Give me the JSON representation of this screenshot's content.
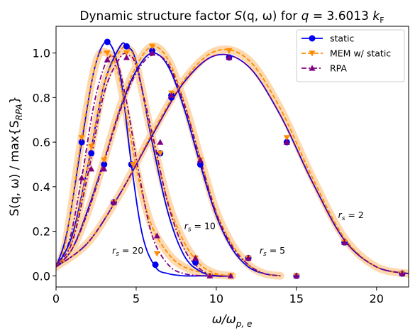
{
  "chart_data": {
    "type": "line",
    "title_parts": {
      "prefix": "Dynamic structure factor ",
      "S": "S",
      "args": "(q, ω)",
      "mid": " for ",
      "q": "q",
      "eq": " = 3.6013 ",
      "k": "k",
      "sub": "F"
    },
    "xlabel_parts": {
      "num": "ω/ω",
      "sub": "p, e"
    },
    "ylabel_parts": {
      "lhs": "S(q, ω) / max{S",
      "sub": "RPA",
      "rhs": "}"
    },
    "xlim": [
      0,
      22
    ],
    "ylim": [
      -0.05,
      1.12
    ],
    "x_ticks": [
      0,
      5,
      10,
      15,
      20
    ],
    "y_ticks": [
      0.0,
      0.2,
      0.4,
      0.6,
      0.8,
      1.0
    ],
    "grid": false,
    "legend_position": "upper right",
    "colors": {
      "static": "#0000ee",
      "mem": "#ff8c00",
      "rpa": "#800080",
      "band": "#fdd9b0"
    },
    "legend": [
      {
        "label": "static",
        "color": "#0000ee",
        "marker": "circle",
        "dash": "solid"
      },
      {
        "label": "MEM w/ static",
        "color": "#ff8c00",
        "marker": "triangle-down",
        "dash": "dashed"
      },
      {
        "label": "RPA",
        "color": "#800080",
        "marker": "triangle-up",
        "dash": "dashdot"
      }
    ],
    "annotations": [
      {
        "text": "r_s = 20",
        "x": 3.5,
        "y": 0.1
      },
      {
        "text": "r_s = 10",
        "x": 8.0,
        "y": 0.21
      },
      {
        "text": "r_s = 5",
        "x": 12.7,
        "y": 0.1
      },
      {
        "text": "r_s = 2",
        "x": 17.6,
        "y": 0.26
      }
    ],
    "series": [
      {
        "rs": 20,
        "static": {
          "x": [
            0,
            0.7,
            1.6,
            2.4,
            3.2,
            4.0,
            4.7,
            5.4,
            6.2,
            7.0,
            8.0,
            9.0,
            10.5
          ],
          "y": [
            0.04,
            0.2,
            0.6,
            0.93,
            1.05,
            0.9,
            0.5,
            0.18,
            0.04,
            0.01,
            0.0,
            0.0,
            0.0
          ]
        },
        "static_markers": {
          "x": [
            1.6,
            3.2,
            4.7,
            6.2
          ],
          "y": [
            0.6,
            1.05,
            0.5,
            0.05
          ]
        },
        "mem": {
          "x": [
            0,
            0.6,
            1.6,
            2.5,
            3.2,
            3.8,
            4.5,
            5.2,
            6.0,
            7.0,
            8.0,
            9.5,
            11
          ],
          "y": [
            0.04,
            0.15,
            0.62,
            0.96,
            1.0,
            0.93,
            0.68,
            0.42,
            0.22,
            0.1,
            0.04,
            0.01,
            0.0
          ]
        },
        "mem_markers": {
          "x": [
            1.6,
            3.2,
            4.8,
            6.3,
            9.6
          ],
          "y": [
            0.62,
            1.0,
            0.5,
            0.1,
            0.0
          ]
        },
        "rpa": {
          "x": [
            0,
            0.8,
            1.6,
            2.4,
            3.2,
            3.8,
            4.4,
            5.2,
            6.0,
            7.0,
            8.0,
            9.5,
            11
          ],
          "y": [
            0.05,
            0.15,
            0.44,
            0.78,
            0.97,
            0.96,
            0.78,
            0.45,
            0.18,
            0.05,
            0.01,
            0.0,
            0.0
          ]
        },
        "rpa_markers": {
          "x": [
            1.6,
            3.2,
            6.3,
            9.6
          ],
          "y": [
            0.44,
            0.97,
            0.18,
            0.0
          ]
        }
      },
      {
        "rs": 10,
        "static": {
          "x": [
            0,
            1,
            2,
            3,
            4,
            4.4,
            5,
            6,
            7,
            8,
            9,
            10,
            11
          ],
          "y": [
            0.04,
            0.18,
            0.5,
            0.86,
            1.03,
            1.03,
            0.96,
            0.6,
            0.28,
            0.09,
            0.02,
            0.0,
            0.0
          ]
        },
        "static_markers": {
          "x": [
            2.2,
            4.4,
            6.5,
            8.7
          ],
          "y": [
            0.55,
            1.03,
            0.55,
            0.06
          ]
        },
        "mem": {
          "x": [
            0,
            1,
            2,
            3,
            4,
            4.5,
            5,
            6,
            7,
            8,
            9,
            10,
            11
          ],
          "y": [
            0.04,
            0.16,
            0.5,
            0.86,
            1.01,
            1.02,
            0.95,
            0.62,
            0.33,
            0.15,
            0.05,
            0.01,
            0.0
          ]
        },
        "mem_markers": {
          "x": [
            2.2,
            4.4,
            6.5,
            8.7,
            10.9
          ],
          "y": [
            0.58,
            1.0,
            0.55,
            0.08,
            0.0
          ]
        },
        "rpa": {
          "x": [
            0,
            1,
            2,
            3,
            4,
            4.5,
            5,
            6,
            7,
            8,
            9,
            10,
            11
          ],
          "y": [
            0.05,
            0.15,
            0.46,
            0.82,
            0.98,
            0.99,
            0.94,
            0.64,
            0.32,
            0.12,
            0.03,
            0.0,
            0.0
          ]
        },
        "rpa_markers": {
          "x": [
            2.2,
            4.4,
            6.5,
            8.7,
            10.9
          ],
          "y": [
            0.48,
            0.98,
            0.6,
            0.08,
            0.0
          ]
        }
      },
      {
        "rs": 5,
        "static": {
          "x": [
            0,
            1,
            2,
            3,
            4,
            5,
            6,
            7,
            8,
            9,
            10,
            11,
            12,
            13,
            14
          ],
          "y": [
            0.04,
            0.12,
            0.3,
            0.52,
            0.75,
            0.92,
            1.0,
            0.94,
            0.75,
            0.5,
            0.27,
            0.12,
            0.04,
            0.01,
            0.0
          ]
        },
        "static_markers": {
          "x": [
            3.0,
            6.0,
            7.2,
            9.0,
            12.0,
            15.0
          ],
          "y": [
            0.5,
            1.01,
            0.8,
            0.5,
            0.08,
            0.0
          ]
        },
        "mem": {
          "x": [
            0,
            1,
            2,
            3,
            4,
            5,
            6,
            7,
            8,
            9,
            10,
            11,
            12,
            13,
            14
          ],
          "y": [
            0.04,
            0.12,
            0.29,
            0.52,
            0.76,
            0.94,
            1.03,
            0.97,
            0.78,
            0.53,
            0.29,
            0.14,
            0.05,
            0.01,
            0.0
          ]
        },
        "mem_markers": {
          "x": [
            3.0,
            6.0,
            9.0,
            12.0,
            15.0
          ],
          "y": [
            0.52,
            1.03,
            0.52,
            0.08,
            0.0
          ]
        },
        "rpa": {
          "x": [
            0,
            1,
            2,
            3,
            4,
            5,
            6,
            7,
            8,
            9,
            10,
            11,
            12,
            13,
            14
          ],
          "y": [
            0.04,
            0.12,
            0.29,
            0.51,
            0.74,
            0.91,
            0.99,
            0.95,
            0.77,
            0.52,
            0.28,
            0.13,
            0.05,
            0.01,
            0.0
          ]
        },
        "rpa_markers": {
          "x": [
            3.0,
            6.0,
            9.0,
            12.0,
            15.0
          ],
          "y": [
            0.48,
            1.0,
            0.52,
            0.08,
            0.0
          ]
        }
      },
      {
        "rs": 2,
        "static": {
          "x": [
            0,
            2,
            4,
            6,
            8,
            10,
            12,
            14,
            16,
            18,
            20,
            22
          ],
          "y": [
            0.04,
            0.15,
            0.37,
            0.63,
            0.87,
            0.99,
            0.94,
            0.72,
            0.42,
            0.16,
            0.04,
            0.01
          ]
        },
        "static_markers": {
          "x": [
            3.6,
            7.2,
            10.8,
            14.4,
            18.0,
            21.6
          ],
          "y": [
            0.33,
            0.81,
            0.98,
            0.6,
            0.15,
            0.01
          ]
        },
        "mem": {
          "x": [
            0,
            2,
            4,
            6,
            8,
            10,
            12,
            14,
            16,
            18,
            20,
            22
          ],
          "y": [
            0.04,
            0.15,
            0.37,
            0.64,
            0.88,
            1.01,
            0.97,
            0.75,
            0.44,
            0.17,
            0.04,
            0.01
          ]
        },
        "mem_markers": {
          "x": [
            3.6,
            7.2,
            10.8,
            14.4,
            18.0,
            21.6
          ],
          "y": [
            0.33,
            0.82,
            1.01,
            0.62,
            0.15,
            0.01
          ]
        },
        "rpa": {
          "x": [
            0,
            2,
            4,
            6,
            8,
            10,
            12,
            14,
            16,
            18,
            20,
            22
          ],
          "y": [
            0.04,
            0.15,
            0.37,
            0.63,
            0.87,
            0.99,
            0.94,
            0.72,
            0.42,
            0.16,
            0.04,
            0.01
          ]
        },
        "rpa_markers": {
          "x": [
            3.6,
            7.2,
            10.8,
            14.4,
            18.0,
            21.6
          ],
          "y": [
            0.33,
            0.81,
            0.98,
            0.6,
            0.15,
            0.01
          ]
        }
      }
    ]
  }
}
